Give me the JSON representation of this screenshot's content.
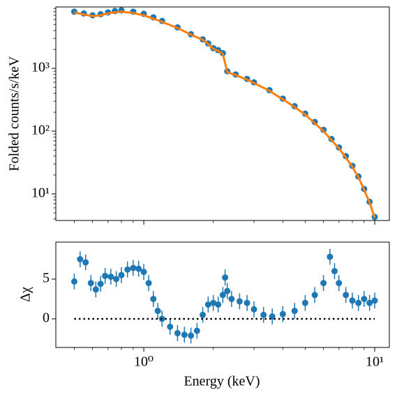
{
  "chart_data": [
    {
      "type": "scatter",
      "ylabel": "Folded counts/s/keV",
      "xscale": "log",
      "yscale": "log",
      "xlim": [
        0.416,
        11.57
      ],
      "ylim": [
        3.78,
        9506
      ],
      "xticks": [
        1,
        10
      ],
      "yticks": [
        {
          "value": 10,
          "label": "10¹"
        },
        {
          "value": 100,
          "label": "10²"
        },
        {
          "value": 1000,
          "label": "10³"
        }
      ],
      "series": [
        {
          "color": "#1f77b4",
          "mode": "markers",
          "x": [
            0.5,
            0.55,
            0.6,
            0.65,
            0.7,
            0.75,
            0.8,
            0.9,
            1.0,
            1.1,
            1.2,
            1.4,
            1.6,
            1.8,
            1.9,
            2.0,
            2.1,
            2.2,
            2.3,
            2.5,
            2.8,
            3.0,
            3.5,
            4,
            4.5,
            5,
            5.5,
            6,
            6.5,
            7,
            7.5,
            8,
            8.5,
            9,
            9.5,
            10
          ],
          "values": [
            8000,
            7500,
            7000,
            7300,
            7800,
            8200,
            8400,
            8000,
            7400,
            6500,
            5700,
            4500,
            3500,
            2900,
            2500,
            2100,
            1950,
            1750,
            900,
            800,
            680,
            600,
            450,
            330,
            250,
            190,
            140,
            105,
            75,
            55,
            40,
            28,
            19,
            12,
            7.5,
            4.3
          ]
        },
        {
          "color": "#ff7f0e",
          "mode": "line",
          "x": [
            0.5,
            0.55,
            0.6,
            0.65,
            0.7,
            0.75,
            0.8,
            0.9,
            1.0,
            1.1,
            1.2,
            1.4,
            1.6,
            1.8,
            1.9,
            2.0,
            2.1,
            2.2,
            2.3,
            2.5,
            2.8,
            3.0,
            3.5,
            4,
            4.5,
            5,
            5.5,
            6,
            6.5,
            7,
            7.5,
            8,
            8.5,
            9,
            9.5,
            10
          ],
          "values": [
            7800,
            7200,
            6800,
            7000,
            7500,
            7800,
            8000,
            7600,
            7000,
            6200,
            5500,
            4400,
            3450,
            2850,
            2450,
            2050,
            1900,
            1700,
            870,
            780,
            660,
            585,
            440,
            320,
            243,
            183,
            134,
            100,
            72,
            53,
            38,
            27,
            18.5,
            11.6,
            7.3,
            4.2
          ]
        }
      ]
    },
    {
      "type": "scatter",
      "xlabel": "Energy (keV)",
      "ylabel": "Δχ",
      "xscale": "log",
      "yscale": "linear",
      "xlim": [
        0.416,
        11.57
      ],
      "ylim": [
        -3.6,
        9.65
      ],
      "xticks": [
        {
          "value": 1,
          "label": "10⁰"
        },
        {
          "value": 10,
          "label": "10¹"
        }
      ],
      "yticks": [
        0,
        5
      ],
      "series": [
        {
          "color": "#1f77b4",
          "mode": "markers",
          "x": [
            0.5,
            0.53,
            0.56,
            0.59,
            0.62,
            0.65,
            0.68,
            0.72,
            0.76,
            0.8,
            0.85,
            0.9,
            0.95,
            1.0,
            1.05,
            1.1,
            1.15,
            1.2,
            1.3,
            1.4,
            1.5,
            1.6,
            1.7,
            1.8,
            1.9,
            2.0,
            2.1,
            2.2,
            2.25,
            2.3,
            2.4,
            2.6,
            2.8,
            3.0,
            3.3,
            3.6,
            4.0,
            4.5,
            5.0,
            5.5,
            6.0,
            6.4,
            6.7,
            7.0,
            7.5,
            8.0,
            8.5,
            9.0,
            9.5,
            10.0
          ],
          "values": [
            4.7,
            7.5,
            7.1,
            4.5,
            3.7,
            4.4,
            5.4,
            5.3,
            5.0,
            5.5,
            6.2,
            6.4,
            6.3,
            5.9,
            4.5,
            2.5,
            1.0,
            0.0,
            -1.0,
            -1.8,
            -2.0,
            -2.1,
            -1.5,
            0.5,
            1.8,
            2.0,
            1.8,
            3.0,
            5.2,
            3.5,
            2.5,
            2.2,
            2.0,
            1.2,
            0.5,
            0.3,
            0.6,
            1.0,
            2.0,
            3.0,
            4.5,
            7.8,
            6.0,
            4.5,
            3.0,
            2.3,
            2.0,
            2.5,
            2.0,
            2.3
          ],
          "errors": [
            1.0,
            1.0,
            1.0,
            1.0,
            1.0,
            1.0,
            1.0,
            1.0,
            1.0,
            1.0,
            1.0,
            1.0,
            1.0,
            1.0,
            1.0,
            1.0,
            1.0,
            1.0,
            1.0,
            1.0,
            1.0,
            1.0,
            1.0,
            1.0,
            1.0,
            1.0,
            1.0,
            1.0,
            1.0,
            1.0,
            1.0,
            1.0,
            1.0,
            1.0,
            1.0,
            1.0,
            1.0,
            1.0,
            1.0,
            1.0,
            1.0,
            1.0,
            1.0,
            1.0,
            1.0,
            1.0,
            1.0,
            1.0,
            1.0,
            1.0
          ]
        },
        {
          "color": "#000000",
          "mode": "dotted",
          "x": [
            0.5,
            10
          ],
          "values": [
            0,
            0
          ]
        }
      ]
    }
  ]
}
